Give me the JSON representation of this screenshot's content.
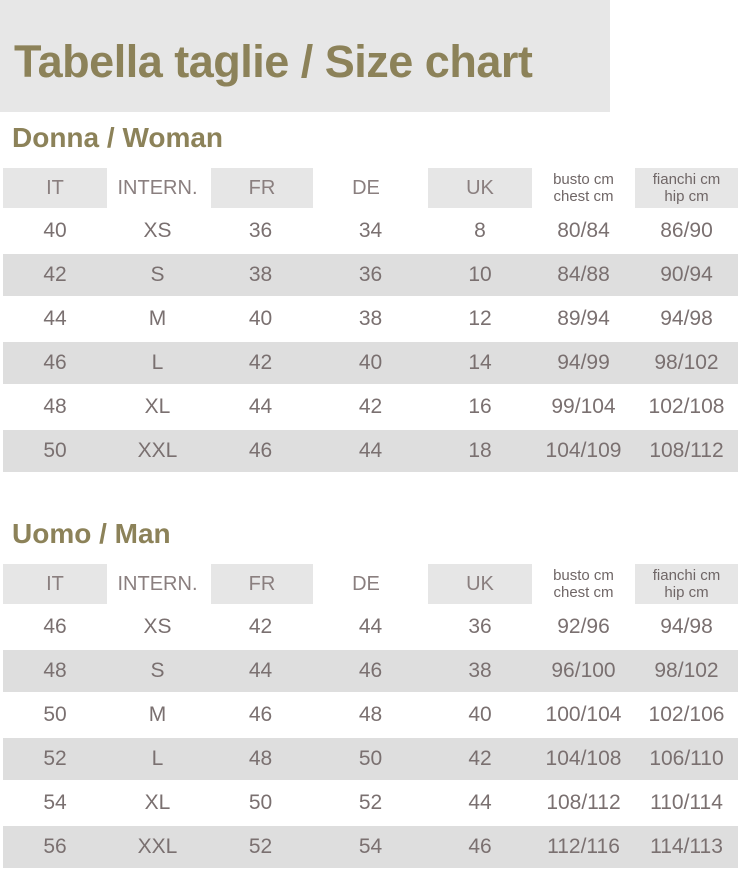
{
  "title": "Tabella taglie / Size chart",
  "headers": [
    "IT",
    "INTERN.",
    "FR",
    "DE",
    "UK",
    [
      "busto cm",
      "chest cm"
    ],
    [
      "fianchi cm",
      "hip cm"
    ]
  ],
  "woman": {
    "title": "Donna / Woman",
    "rows": [
      [
        "40",
        "XS",
        "36",
        "34",
        "8",
        "80/84",
        "86/90"
      ],
      [
        "42",
        "S",
        "38",
        "36",
        "10",
        "84/88",
        "90/94"
      ],
      [
        "44",
        "M",
        "40",
        "38",
        "12",
        "89/94",
        "94/98"
      ],
      [
        "46",
        "L",
        "42",
        "40",
        "14",
        "94/99",
        "98/102"
      ],
      [
        "48",
        "XL",
        "44",
        "42",
        "16",
        "99/104",
        "102/108"
      ],
      [
        "50",
        "XXL",
        "46",
        "44",
        "18",
        "104/109",
        "108/112"
      ]
    ]
  },
  "man": {
    "title": "Uomo / Man",
    "rows": [
      [
        "46",
        "XS",
        "42",
        "44",
        "36",
        "92/96",
        "94/98"
      ],
      [
        "48",
        "S",
        "44",
        "46",
        "38",
        "96/100",
        "98/102"
      ],
      [
        "50",
        "M",
        "46",
        "48",
        "40",
        "100/104",
        "102/106"
      ],
      [
        "52",
        "L",
        "48",
        "50",
        "42",
        "104/108",
        "106/110"
      ],
      [
        "54",
        "XL",
        "50",
        "52",
        "44",
        "108/112",
        "110/114"
      ],
      [
        "56",
        "XXL",
        "52",
        "54",
        "46",
        "112/116",
        "114/113"
      ]
    ]
  },
  "colors": {
    "accent": "#8c8259",
    "text": "#7a7070",
    "stripe": "#dedede"
  }
}
